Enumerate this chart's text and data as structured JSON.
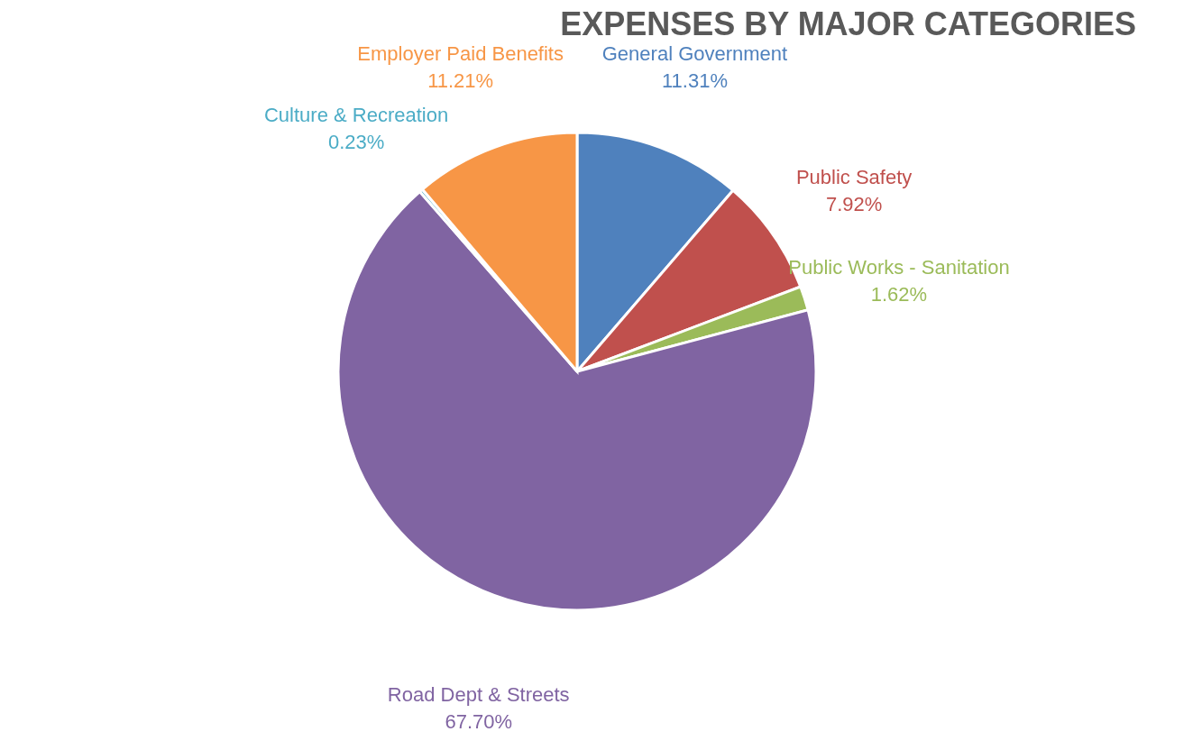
{
  "chart_data": {
    "type": "pie",
    "title": "EXPENSES BY MAJOR CATEGORIES",
    "categories": [
      "General Government",
      "Public Safety",
      "Public Works - Sanitation",
      "Road Dept & Streets",
      "Culture & Recreation",
      "Employer Paid Benefits"
    ],
    "values": [
      11.31,
      7.92,
      1.62,
      67.7,
      0.23,
      11.21
    ],
    "value_labels": [
      "11.31%",
      "7.92%",
      "1.62%",
      "67.70%",
      "0.23%",
      "11.21%"
    ],
    "colors": [
      "#4f81bd",
      "#c0504d",
      "#9bbb59",
      "#8064a2",
      "#4bacc6",
      "#f79646"
    ],
    "legend": false
  }
}
